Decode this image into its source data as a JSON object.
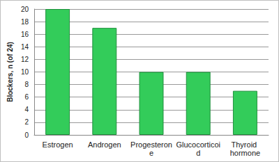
{
  "chart_data": {
    "type": "bar",
    "y_label": "Blockers, n (of 24)",
    "categories": [
      "Estrogen",
      "Androgen",
      "Progesterone",
      "Glucocorticoid",
      "Thyroid hormone"
    ],
    "values": [
      20,
      17,
      10,
      10,
      7
    ],
    "color": "#33cc5a",
    "ylim": [
      0,
      20
    ],
    "yticks": [
      0,
      2,
      4,
      6,
      8,
      10,
      12,
      14,
      16,
      18,
      20
    ],
    "grid": true
  }
}
